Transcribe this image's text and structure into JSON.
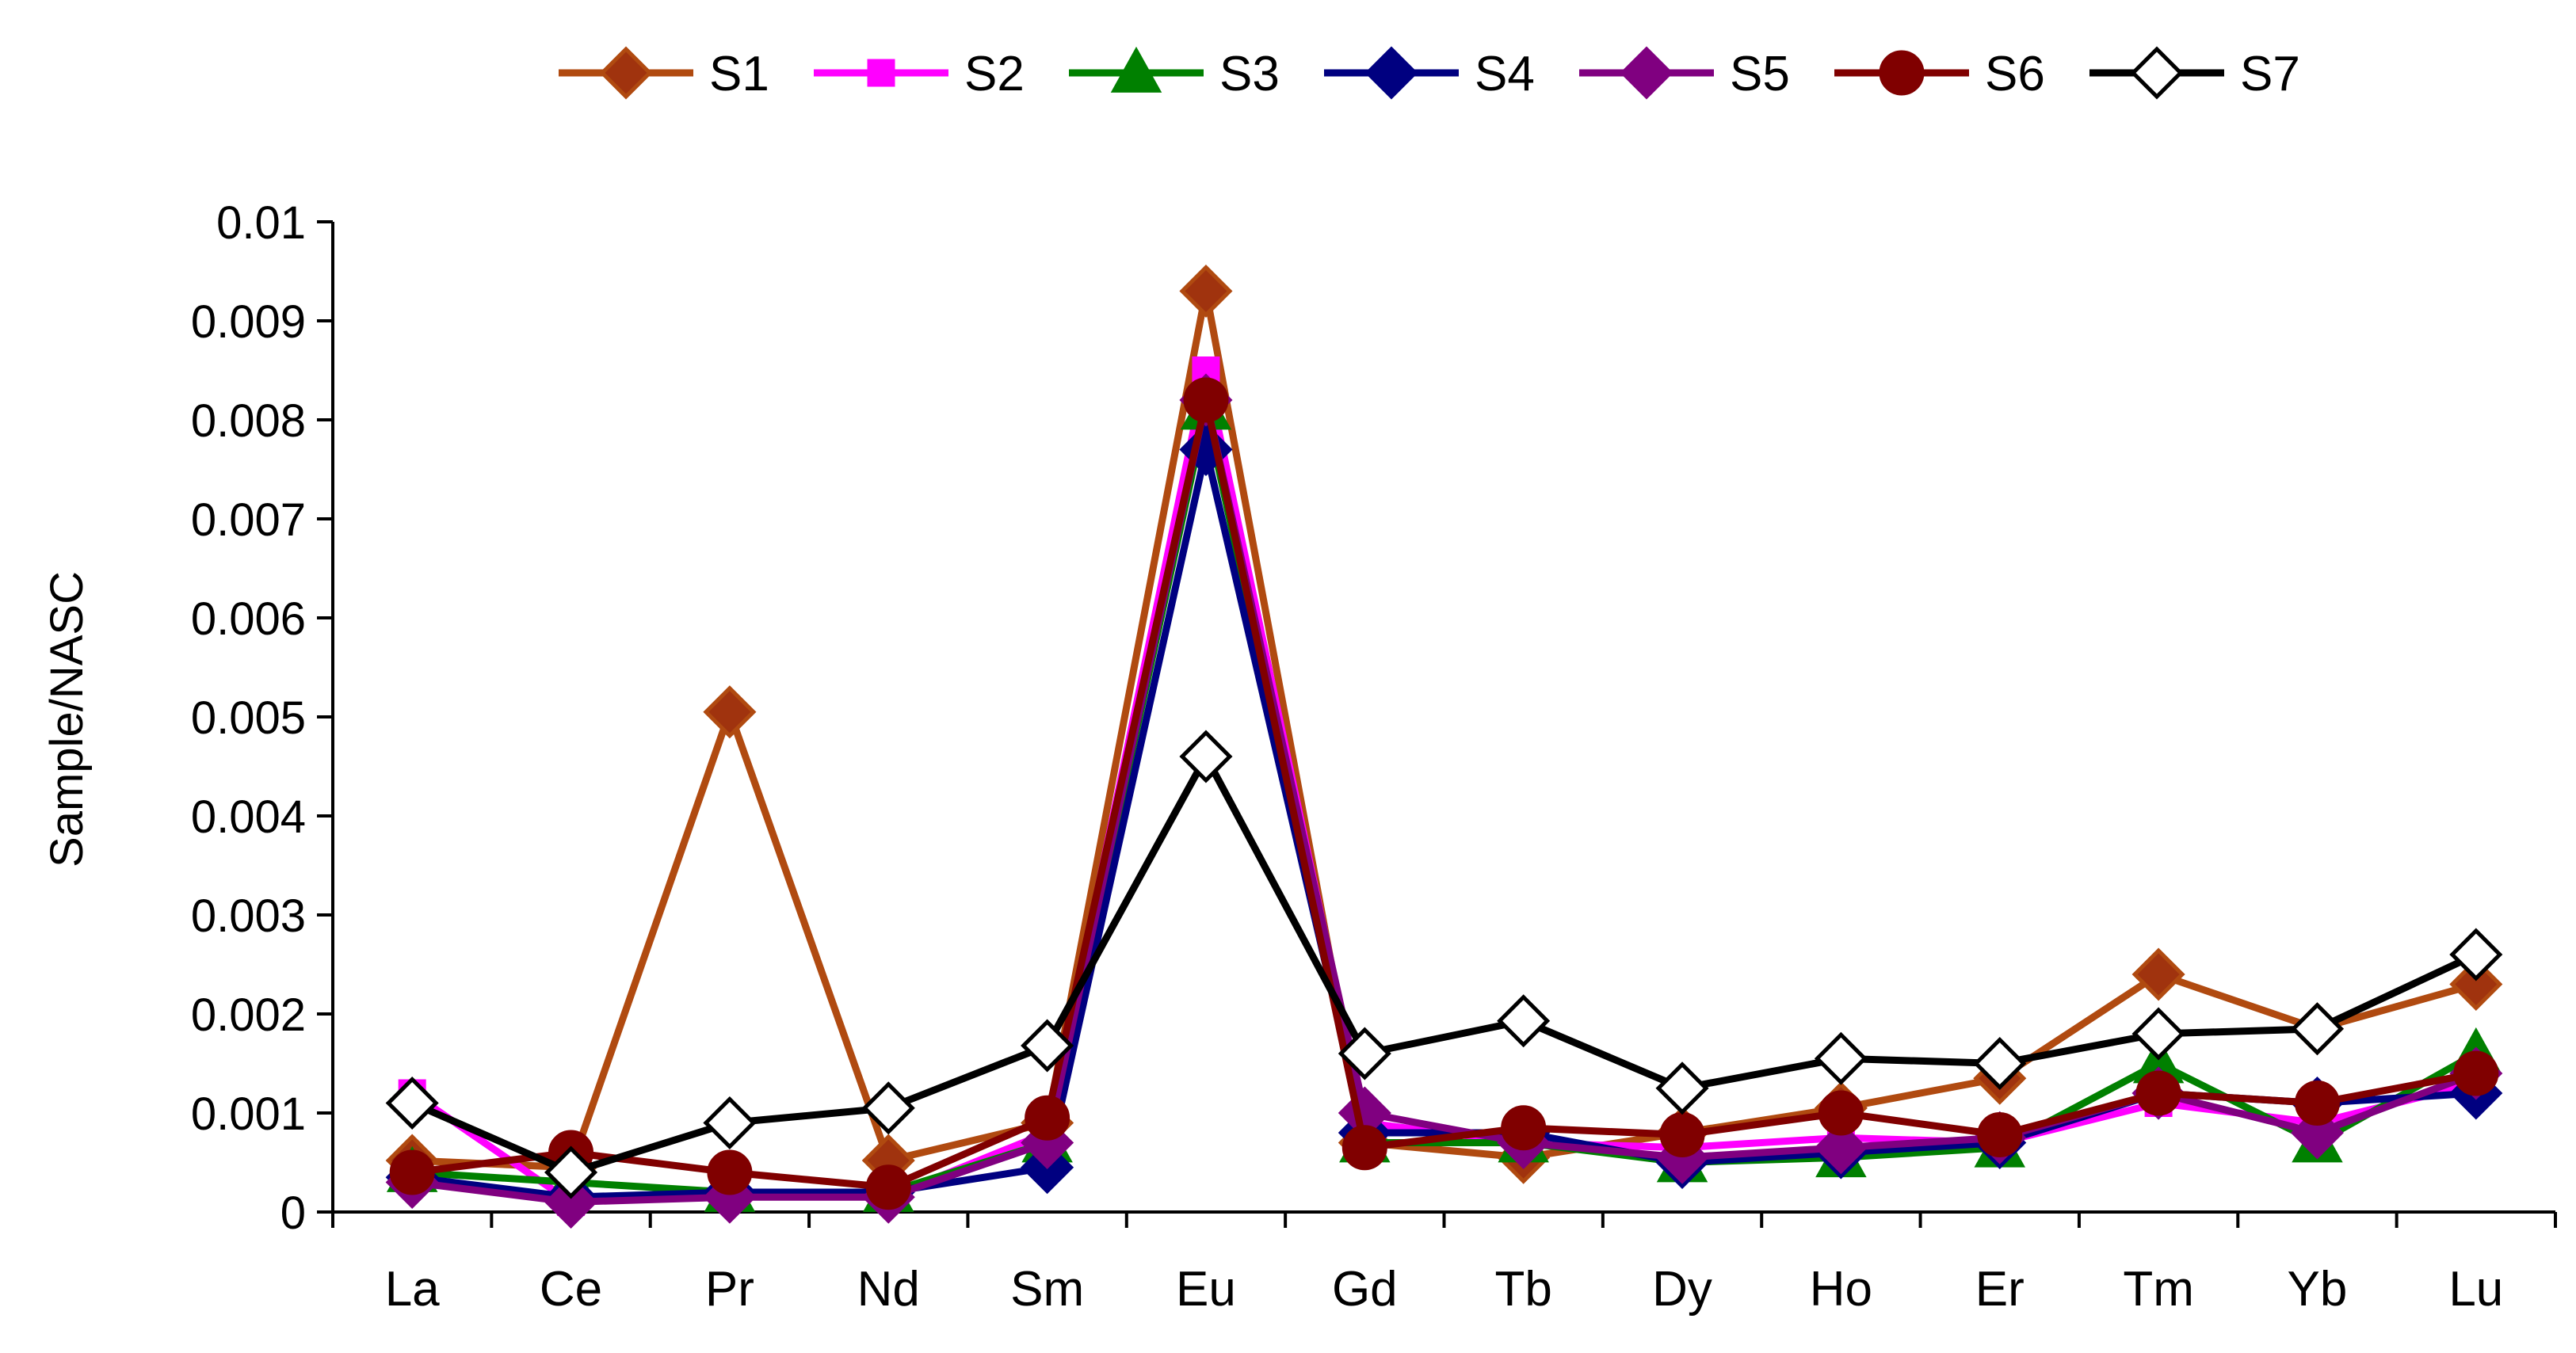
{
  "chart_data": {
    "type": "line",
    "title": "",
    "xlabel": "",
    "ylabel": "Sample/NASC",
    "ylim": [
      0,
      0.01
    ],
    "yticks": [
      "0",
      "0.001",
      "0.002",
      "0.003",
      "0.004",
      "0.005",
      "0.006",
      "0.007",
      "0.008",
      "0.009",
      "0.01"
    ],
    "grid": false,
    "legend_position": "top",
    "categories": [
      "La",
      "Ce",
      "Pr",
      "Nd",
      "Sm",
      "Eu",
      "Gd",
      "Tb",
      "Dy",
      "Ho",
      "Er",
      "Tm",
      "Yb",
      "Lu"
    ],
    "series": [
      {
        "name": "S1",
        "color": "#B04A10",
        "marker": "diamond",
        "marker_fill": "#A0330E",
        "marker_stroke": "#B04A10",
        "values": [
          0.00052,
          0.00045,
          0.00505,
          0.00052,
          0.0009,
          0.0093,
          0.0007,
          0.00055,
          0.0008,
          0.00105,
          0.00135,
          0.0024,
          0.00185,
          0.0023
        ]
      },
      {
        "name": "S2",
        "color": "#FF00FF",
        "marker": "square",
        "marker_fill": "#FF00FF",
        "marker_stroke": "#FF00FF",
        "values": [
          0.0012,
          0.0001,
          0.0002,
          0.00015,
          0.0008,
          0.0085,
          0.0009,
          0.0007,
          0.00065,
          0.00075,
          0.0007,
          0.0011,
          0.0009,
          0.0013
        ]
      },
      {
        "name": "S3",
        "color": "#008000",
        "marker": "triangle",
        "marker_fill": "#008000",
        "marker_stroke": "#008000",
        "values": [
          0.0004,
          0.0003,
          0.0002,
          0.0002,
          0.0007,
          0.0081,
          0.0007,
          0.0007,
          0.0005,
          0.00055,
          0.00065,
          0.0015,
          0.0007,
          0.0016
        ]
      },
      {
        "name": "S4",
        "color": "#000080",
        "marker": "diamond",
        "marker_fill": "#000080",
        "marker_stroke": "#000080",
        "values": [
          0.00035,
          0.00015,
          0.0002,
          0.0002,
          0.00045,
          0.0077,
          0.0008,
          0.0008,
          0.0005,
          0.0006,
          0.0007,
          0.0012,
          0.0011,
          0.0012
        ]
      },
      {
        "name": "S5",
        "color": "#800080",
        "marker": "diamond",
        "marker_fill": "#800080",
        "marker_stroke": "#800080",
        "values": [
          0.0003,
          0.0001,
          0.00015,
          0.00015,
          0.0007,
          0.0082,
          0.001,
          0.0007,
          0.00055,
          0.00065,
          0.00075,
          0.0012,
          0.0008,
          0.0014
        ]
      },
      {
        "name": "S6",
        "color": "#800000",
        "marker": "circle",
        "marker_fill": "#800000",
        "marker_stroke": "#800000",
        "values": [
          0.0004,
          0.0006,
          0.0004,
          0.00025,
          0.00095,
          0.0082,
          0.00065,
          0.00085,
          0.00078,
          0.001,
          0.00078,
          0.0012,
          0.0011,
          0.0014
        ]
      },
      {
        "name": "S7",
        "color": "#000000",
        "marker": "diamond",
        "marker_fill": "#FFFFFF",
        "marker_stroke": "#000000",
        "values": [
          0.0011,
          0.0004,
          0.0009,
          0.00105,
          0.00168,
          0.0046,
          0.0016,
          0.00193,
          0.00125,
          0.00155,
          0.0015,
          0.0018,
          0.00185,
          0.0026
        ]
      }
    ]
  }
}
